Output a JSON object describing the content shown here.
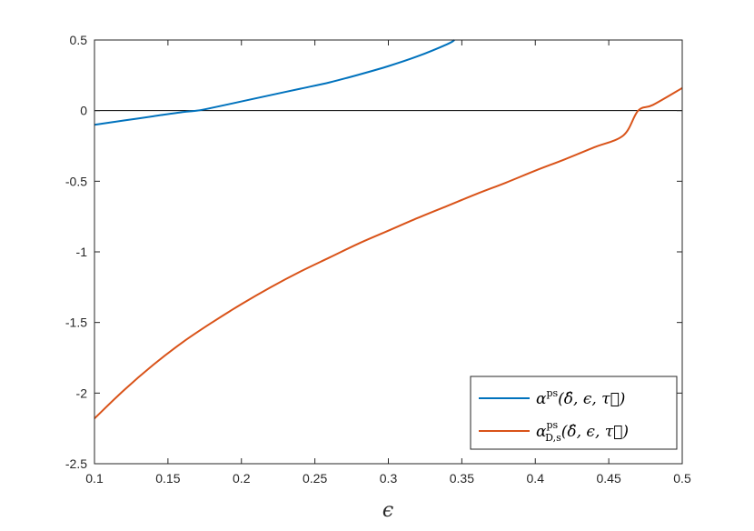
{
  "chart_data": {
    "type": "line",
    "title": "",
    "xlabel": "ϵ",
    "ylabel": "",
    "xlim": [
      0.1,
      0.5
    ],
    "ylim": [
      -2.5,
      0.5
    ],
    "x_ticks": [
      "0.1",
      "0.15",
      "0.2",
      "0.25",
      "0.3",
      "0.35",
      "0.4",
      "0.45",
      "0.5"
    ],
    "y_ticks": [
      "0.5",
      "0",
      "-0.5",
      "-1",
      "-1.5",
      "-2",
      "-2.5"
    ],
    "x_tick_values": [
      0.1,
      0.15,
      0.2,
      0.25,
      0.3,
      0.35,
      0.4,
      0.45,
      0.5
    ],
    "y_tick_values": [
      0.5,
      0,
      -0.5,
      -1,
      -1.5,
      -2,
      -2.5
    ],
    "grid": false,
    "zero_line": 0,
    "legend_position": "bottom-right",
    "series": [
      {
        "name": "α^ps(δ̂, ϵ, τ⃗)",
        "color": "#0072BD",
        "x": [
          0.1,
          0.12,
          0.14,
          0.16,
          0.17,
          0.18,
          0.2,
          0.22,
          0.24,
          0.26,
          0.28,
          0.3,
          0.32,
          0.34,
          0.345
        ],
        "y": [
          -0.1,
          -0.07,
          -0.04,
          -0.01,
          0.0,
          0.02,
          0.065,
          0.11,
          0.155,
          0.2,
          0.255,
          0.315,
          0.385,
          0.47,
          0.5
        ]
      },
      {
        "name": "α^ps_{D,s}(δ̂, ϵ, τ⃗)",
        "color": "#D95319",
        "x": [
          0.1,
          0.12,
          0.14,
          0.16,
          0.18,
          0.2,
          0.22,
          0.24,
          0.26,
          0.28,
          0.3,
          0.32,
          0.34,
          0.36,
          0.38,
          0.4,
          0.42,
          0.44,
          0.46,
          0.47,
          0.48,
          0.5
        ],
        "y": [
          -2.18,
          -1.98,
          -1.8,
          -1.64,
          -1.5,
          -1.37,
          -1.25,
          -1.14,
          -1.04,
          -0.94,
          -0.85,
          -0.76,
          -0.675,
          -0.59,
          -0.51,
          -0.425,
          -0.345,
          -0.26,
          -0.175,
          -0.0,
          0.04,
          0.16
        ]
      }
    ]
  },
  "legend": {
    "entry1_base": "α",
    "entry1_sup": "ps",
    "entry1_args": "(δ̂, ϵ, τ⃗)",
    "entry2_base": "α",
    "entry2_sup": "ps",
    "entry2_sub": "D,s",
    "entry2_args": "(δ̂, ϵ, τ⃗)"
  }
}
